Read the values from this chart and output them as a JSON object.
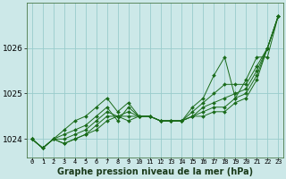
{
  "xlabel": "Graphe pression niveau de la mer (hPa)",
  "hours": [
    0,
    1,
    2,
    3,
    4,
    5,
    6,
    7,
    8,
    9,
    10,
    11,
    12,
    13,
    14,
    15,
    16,
    17,
    18,
    19,
    20,
    21,
    22,
    23
  ],
  "series": [
    [
      1024.0,
      1023.8,
      1024.0,
      1023.9,
      1024.0,
      1024.1,
      1024.2,
      1024.4,
      1024.5,
      1024.4,
      1024.5,
      1024.5,
      1024.4,
      1024.4,
      1024.4,
      1024.5,
      1024.5,
      1024.6,
      1024.6,
      1024.8,
      1024.9,
      1025.3,
      1026.0,
      1026.7
    ],
    [
      1024.0,
      1023.8,
      1024.0,
      1023.9,
      1024.0,
      1024.1,
      1024.3,
      1024.5,
      1024.5,
      1024.5,
      1024.5,
      1024.5,
      1024.4,
      1024.4,
      1024.4,
      1024.5,
      1024.6,
      1024.7,
      1024.7,
      1024.9,
      1025.0,
      1025.4,
      1026.0,
      1026.7
    ],
    [
      1024.0,
      1023.8,
      1024.0,
      1024.0,
      1024.1,
      1024.2,
      1024.4,
      1024.6,
      1024.5,
      1024.6,
      1024.5,
      1024.5,
      1024.4,
      1024.4,
      1024.4,
      1024.5,
      1024.7,
      1024.8,
      1024.9,
      1025.0,
      1025.1,
      1025.5,
      1026.0,
      1026.7
    ],
    [
      1024.0,
      1023.8,
      1024.0,
      1024.1,
      1024.2,
      1024.3,
      1024.5,
      1024.7,
      1024.4,
      1024.7,
      1024.5,
      1024.5,
      1024.4,
      1024.4,
      1024.4,
      1024.6,
      1024.8,
      1025.0,
      1025.2,
      1025.2,
      1025.2,
      1025.6,
      1026.0,
      1026.7
    ],
    [
      1024.0,
      1023.8,
      1024.0,
      1024.2,
      1024.4,
      1024.5,
      1024.7,
      1024.9,
      1024.6,
      1024.8,
      1024.5,
      1024.5,
      1024.4,
      1024.4,
      1024.4,
      1024.7,
      1024.9,
      1025.4,
      1025.8,
      1024.9,
      1025.3,
      1025.8,
      1025.8,
      1026.7
    ]
  ],
  "line_color": "#1a6b1a",
  "marker": "D",
  "marker_size": 2.0,
  "bg_color": "#cce8e8",
  "grid_color": "#99cccc",
  "ylim": [
    1023.6,
    1027.0
  ],
  "yticks": [
    1024,
    1025,
    1026
  ],
  "tick_fontsize": 6.5,
  "xlabel_fontsize": 7.0
}
